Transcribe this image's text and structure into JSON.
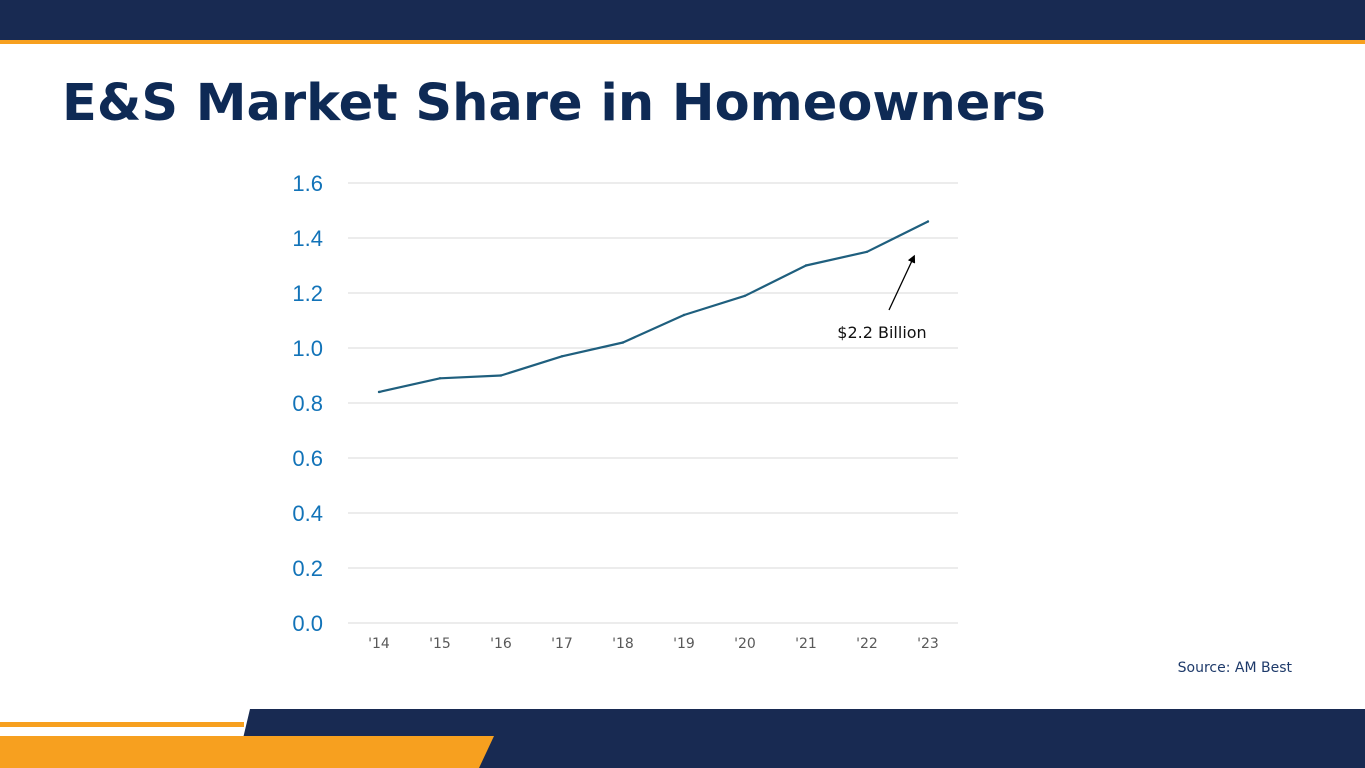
{
  "slide": {
    "title": "E&S Market Share in Homeowners",
    "source": "Source: AM Best"
  },
  "colors": {
    "navy": "#182a52",
    "gold": "#f7a01f",
    "line": "#1f5f7e",
    "axis_labels": "#1273b8"
  },
  "chart_data": {
    "type": "line",
    "categories": [
      "'14",
      "'15",
      "'16",
      "'17",
      "'18",
      "'19",
      "'20",
      "'21",
      "'22",
      "'23"
    ],
    "series": [
      {
        "values": [
          0.84,
          0.89,
          0.9,
          0.97,
          1.02,
          1.12,
          1.19,
          1.3,
          1.35,
          1.46
        ]
      }
    ],
    "ylim": [
      0,
      1.6
    ],
    "yticks": [
      "0.0",
      "0.2",
      "0.4",
      "0.6",
      "0.8",
      "1.0",
      "1.2",
      "1.4",
      "1.6"
    ],
    "grid": true,
    "annotation": {
      "text": "$2.2 Billion",
      "points_to": "'23"
    }
  }
}
